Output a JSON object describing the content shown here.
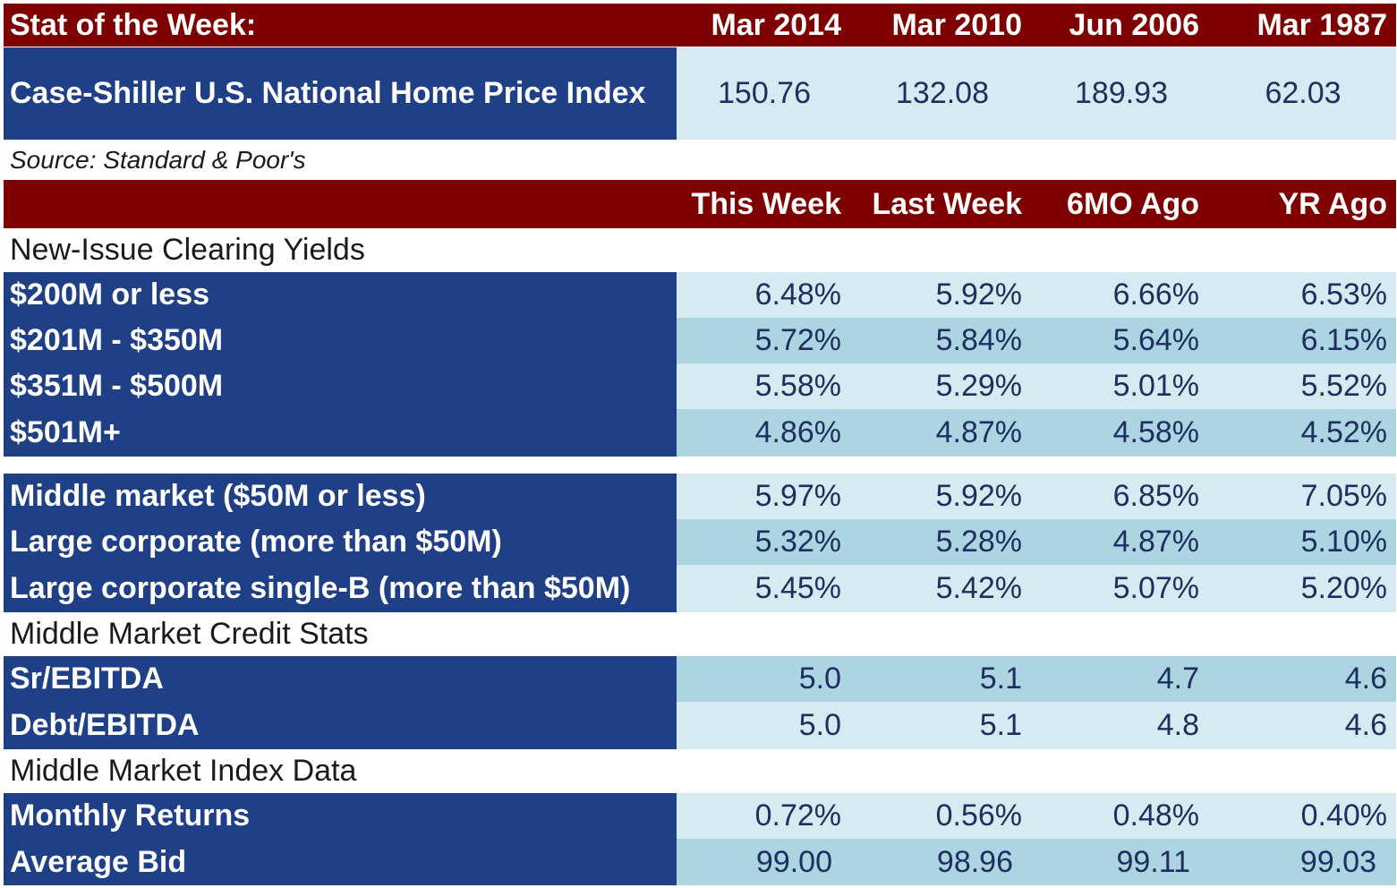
{
  "stat_header": {
    "title": "Stat of the Week:",
    "columns": [
      "Mar 2014",
      "Mar 2010",
      "Jun 2006",
      "Mar 1987"
    ]
  },
  "stat_row": {
    "label": "Case-Shiller U.S. National Home Price Index",
    "values": [
      "150.76",
      "132.08",
      "189.93",
      "62.03"
    ]
  },
  "source": "Source: Standard & Poor's",
  "table_header": {
    "columns": [
      "This Week",
      "Last Week",
      "6MO Ago",
      "YR Ago"
    ]
  },
  "sections": {
    "new_issue": "New-Issue Clearing Yields",
    "credit_stats": "Middle Market Credit Stats",
    "index_data": "Middle Market Index Data"
  },
  "yields": [
    {
      "label": "$200M or less",
      "values": [
        "6.48%",
        "5.92%",
        "6.66%",
        "6.53%"
      ]
    },
    {
      "label": "$201M - $350M",
      "values": [
        "5.72%",
        "5.84%",
        "5.64%",
        "6.15%"
      ]
    },
    {
      "label": "$351M - $500M",
      "values": [
        "5.58%",
        "5.29%",
        "5.01%",
        "5.52%"
      ]
    },
    {
      "label": "$501M+",
      "values": [
        "4.86%",
        "4.87%",
        "4.58%",
        "4.52%"
      ]
    }
  ],
  "markets": [
    {
      "label": "Middle market ($50M or less)",
      "values": [
        "5.97%",
        "5.92%",
        "6.85%",
        "7.05%"
      ]
    },
    {
      "label": "Large corporate (more than $50M)",
      "values": [
        "5.32%",
        "5.28%",
        "4.87%",
        "5.10%"
      ]
    },
    {
      "label": "Large corporate single-B (more than $50M)",
      "values": [
        "5.45%",
        "5.42%",
        "5.07%",
        "5.20%"
      ]
    }
  ],
  "credit": [
    {
      "label": "Sr/EBITDA",
      "values": [
        "5.0",
        "5.1",
        "4.7",
        "4.6"
      ]
    },
    {
      "label": "Debt/EBITDA",
      "values": [
        "5.0",
        "5.1",
        "4.8",
        "4.6"
      ]
    }
  ],
  "index": [
    {
      "label": "Monthly Returns",
      "values": [
        "0.72%",
        "0.56%",
        "0.48%",
        "0.40%"
      ]
    },
    {
      "label": "Average Bid",
      "values": [
        "99.00",
        "98.96",
        "99.11",
        "99.03"
      ]
    }
  ]
}
